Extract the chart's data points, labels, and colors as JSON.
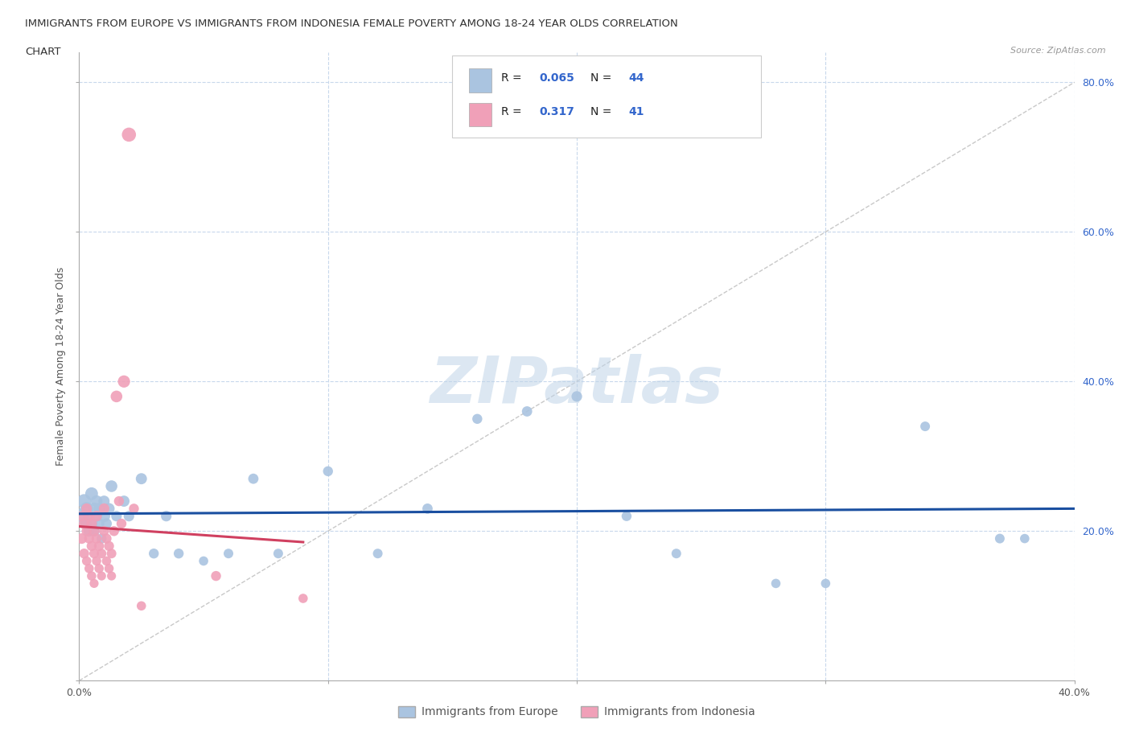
{
  "title_line1": "IMMIGRANTS FROM EUROPE VS IMMIGRANTS FROM INDONESIA FEMALE POVERTY AMONG 18-24 YEAR OLDS CORRELATION",
  "title_line2": "CHART",
  "source": "Source: ZipAtlas.com",
  "ylabel": "Female Poverty Among 18-24 Year Olds",
  "xlim": [
    0,
    0.4
  ],
  "ylim": [
    0,
    0.84
  ],
  "R_europe": 0.065,
  "N_europe": 44,
  "R_indonesia": 0.317,
  "N_indonesia": 41,
  "color_europe": "#aac4e0",
  "color_indonesia": "#f0a0b8",
  "trendline_europe_color": "#1a4fa0",
  "trendline_indonesia_color": "#d04060",
  "grid_color": "#c8d8ec",
  "watermark_color": "#c0d4e8",
  "europe_x": [
    0.001,
    0.002,
    0.003,
    0.003,
    0.004,
    0.004,
    0.005,
    0.005,
    0.006,
    0.006,
    0.007,
    0.007,
    0.008,
    0.008,
    0.009,
    0.01,
    0.01,
    0.011,
    0.012,
    0.013,
    0.015,
    0.018,
    0.02,
    0.025,
    0.03,
    0.035,
    0.04,
    0.05,
    0.06,
    0.07,
    0.08,
    0.1,
    0.12,
    0.14,
    0.16,
    0.18,
    0.2,
    0.22,
    0.24,
    0.28,
    0.3,
    0.34,
    0.37,
    0.38
  ],
  "europe_y": [
    0.22,
    0.24,
    0.21,
    0.23,
    0.2,
    0.22,
    0.25,
    0.21,
    0.23,
    0.2,
    0.24,
    0.22,
    0.21,
    0.23,
    0.19,
    0.22,
    0.24,
    0.21,
    0.23,
    0.26,
    0.22,
    0.24,
    0.22,
    0.27,
    0.17,
    0.22,
    0.17,
    0.16,
    0.17,
    0.27,
    0.17,
    0.28,
    0.17,
    0.23,
    0.35,
    0.36,
    0.38,
    0.22,
    0.17,
    0.13,
    0.13,
    0.34,
    0.19,
    0.19
  ],
  "europe_size": [
    200,
    160,
    120,
    140,
    100,
    120,
    130,
    110,
    120,
    100,
    110,
    100,
    90,
    100,
    80,
    120,
    100,
    90,
    100,
    110,
    90,
    100,
    90,
    100,
    80,
    90,
    80,
    70,
    75,
    85,
    75,
    80,
    75,
    85,
    80,
    85,
    90,
    80,
    75,
    70,
    70,
    75,
    75,
    70
  ],
  "indonesia_x": [
    0.001,
    0.001,
    0.002,
    0.002,
    0.003,
    0.003,
    0.003,
    0.004,
    0.004,
    0.004,
    0.005,
    0.005,
    0.005,
    0.006,
    0.006,
    0.006,
    0.007,
    0.007,
    0.007,
    0.008,
    0.008,
    0.009,
    0.009,
    0.01,
    0.01,
    0.011,
    0.011,
    0.012,
    0.012,
    0.013,
    0.013,
    0.014,
    0.015,
    0.016,
    0.017,
    0.018,
    0.02,
    0.022,
    0.025,
    0.055,
    0.09
  ],
  "indonesia_y": [
    0.19,
    0.22,
    0.17,
    0.21,
    0.16,
    0.2,
    0.23,
    0.15,
    0.19,
    0.22,
    0.14,
    0.18,
    0.21,
    0.13,
    0.17,
    0.2,
    0.16,
    0.19,
    0.22,
    0.15,
    0.18,
    0.14,
    0.17,
    0.2,
    0.23,
    0.16,
    0.19,
    0.15,
    0.18,
    0.14,
    0.17,
    0.2,
    0.38,
    0.24,
    0.21,
    0.4,
    0.73,
    0.23,
    0.1,
    0.14,
    0.11
  ],
  "indonesia_size": [
    90,
    80,
    80,
    90,
    70,
    80,
    90,
    70,
    80,
    90,
    70,
    80,
    90,
    65,
    75,
    85,
    70,
    80,
    90,
    70,
    80,
    65,
    75,
    80,
    90,
    70,
    80,
    70,
    80,
    65,
    75,
    80,
    110,
    80,
    80,
    120,
    160,
    80,
    70,
    80,
    70
  ]
}
